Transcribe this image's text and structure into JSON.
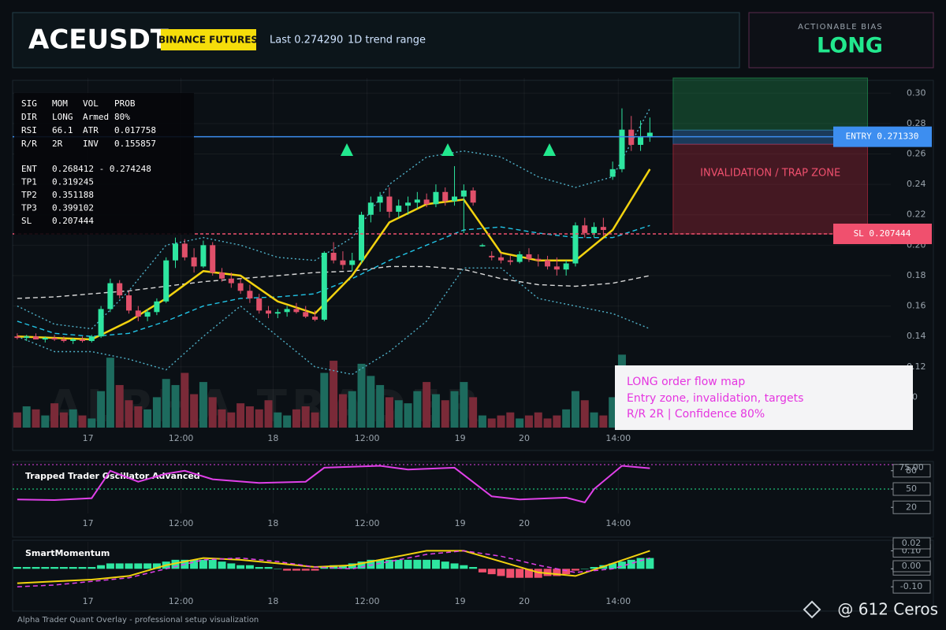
{
  "header": {
    "symbol": "ACEUSDT",
    "badge": "BINANCE FUTURES",
    "last": "Last 0.274290",
    "range": "1D trend range"
  },
  "bias": {
    "label": "ACTIONABLE BIAS",
    "value": "LONG"
  },
  "info": {
    "stats": [
      [
        "SIG",
        "MOM",
        "VOL",
        "PROB"
      ],
      [
        "DIR",
        "LONG",
        "Armed",
        "80%"
      ],
      [
        "RSI",
        "66.1",
        "ATR",
        "0.017758"
      ],
      [
        "R/R",
        "2R",
        "INV",
        "0.155857"
      ]
    ],
    "levels": [
      [
        "ENT",
        "0.268412 - 0.274248"
      ],
      [
        "TP1",
        "0.319245"
      ],
      [
        "TP2",
        "0.351188"
      ],
      [
        "TP3",
        "0.399102"
      ],
      [
        "SL",
        "0.207444"
      ]
    ]
  },
  "annotation": [
    "LONG order flow map",
    "Entry zone, invalidation, targets",
    "R/R 2R | Confidence 80%"
  ],
  "watermark": "ALPHA TRADER",
  "footer": "Alpha Trader Quant Overlay - professional setup visualization",
  "credit": "@ 612 Ceros",
  "chart_data": [
    {
      "type": "candlestick",
      "xlim": [
        -0.5,
        93.9
      ],
      "xticks": [
        {
          "value": 7.6,
          "label": "17"
        },
        {
          "value": 17.6,
          "label": "12:00"
        },
        {
          "value": 27.5,
          "label": "18"
        },
        {
          "value": 37.6,
          "label": "12:00"
        },
        {
          "value": 47.6,
          "label": "19"
        },
        {
          "value": 54.5,
          "label": "20"
        },
        {
          "value": 64.6,
          "label": "14:00"
        }
      ],
      "ylim": [
        0.08,
        0.31
      ],
      "yticks": [
        {
          "value": 0.3,
          "label": "0.30"
        },
        0.28,
        0.26,
        0.24,
        0.22,
        {
          "value": 0.2,
          "label": "0.20"
        },
        0.18,
        0.16,
        0.14,
        0.12
      ],
      "y2lim": [
        0,
        115
      ],
      "y2ticks": [
        10
      ],
      "grid": true,
      "up_color": "#2ee6a0",
      "down_color": "#e0506a",
      "candles": [
        [
          0.14,
          0.142,
          0.138,
          0.139
        ],
        [
          0.139,
          0.141,
          0.137,
          0.14
        ],
        [
          0.14,
          0.142,
          0.138,
          0.138
        ],
        [
          0.138,
          0.14,
          0.136,
          0.139
        ],
        [
          0.139,
          0.141,
          0.137,
          0.138
        ],
        [
          0.138,
          0.14,
          0.136,
          0.137
        ],
        [
          0.137,
          0.139,
          0.135,
          0.138
        ],
        [
          0.138,
          0.14,
          0.136,
          0.137
        ],
        [
          0.137,
          0.141,
          0.136,
          0.14
        ],
        [
          0.14,
          0.16,
          0.139,
          0.158
        ],
        [
          0.158,
          0.178,
          0.156,
          0.175
        ],
        [
          0.175,
          0.177,
          0.165,
          0.167
        ],
        [
          0.167,
          0.17,
          0.155,
          0.157
        ],
        [
          0.157,
          0.16,
          0.15,
          0.153
        ],
        [
          0.153,
          0.158,
          0.15,
          0.156
        ],
        [
          0.156,
          0.165,
          0.154,
          0.163
        ],
        [
          0.163,
          0.192,
          0.162,
          0.19
        ],
        [
          0.19,
          0.205,
          0.185,
          0.201
        ],
        [
          0.201,
          0.204,
          0.19,
          0.192
        ],
        [
          0.192,
          0.198,
          0.182,
          0.186
        ],
        [
          0.186,
          0.203,
          0.185,
          0.2
        ],
        [
          0.2,
          0.202,
          0.18,
          0.182
        ],
        [
          0.182,
          0.185,
          0.176,
          0.178
        ],
        [
          0.178,
          0.182,
          0.172,
          0.175
        ],
        [
          0.175,
          0.178,
          0.168,
          0.17
        ],
        [
          0.17,
          0.174,
          0.162,
          0.165
        ],
        [
          0.165,
          0.168,
          0.155,
          0.157
        ],
        [
          0.157,
          0.16,
          0.152,
          0.155
        ],
        [
          0.155,
          0.158,
          0.152,
          0.156
        ],
        [
          0.156,
          0.16,
          0.153,
          0.158
        ],
        [
          0.158,
          0.162,
          0.155,
          0.156
        ],
        [
          0.156,
          0.16,
          0.152,
          0.153
        ],
        [
          0.153,
          0.157,
          0.15,
          0.151
        ],
        [
          0.151,
          0.196,
          0.15,
          0.195
        ],
        [
          0.195,
          0.202,
          0.188,
          0.19
        ],
        [
          0.19,
          0.196,
          0.184,
          0.187
        ],
        [
          0.187,
          0.195,
          0.183,
          0.19
        ],
        [
          0.19,
          0.222,
          0.188,
          0.22
        ],
        [
          0.22,
          0.232,
          0.215,
          0.228
        ],
        [
          0.228,
          0.235,
          0.222,
          0.232
        ],
        [
          0.232,
          0.238,
          0.218,
          0.222
        ],
        [
          0.222,
          0.23,
          0.218,
          0.226
        ],
        [
          0.226,
          0.232,
          0.22,
          0.228
        ],
        [
          0.228,
          0.235,
          0.224,
          0.23
        ],
        [
          0.23,
          0.234,
          0.225,
          0.227
        ],
        [
          0.227,
          0.24,
          0.225,
          0.235
        ],
        [
          0.235,
          0.238,
          0.226,
          0.229
        ],
        [
          0.229,
          0.252,
          0.226,
          0.232
        ],
        [
          0.232,
          0.24,
          0.208,
          0.236
        ],
        [
          0.236,
          0.238,
          0.226,
          0.228
        ],
        [
          0.2,
          0.201,
          0.199,
          0.2
        ],
        [
          0.193,
          0.196,
          0.19,
          0.192
        ],
        [
          0.192,
          0.195,
          0.188,
          0.19
        ],
        [
          0.19,
          0.193,
          0.187,
          0.189
        ],
        [
          0.189,
          0.196,
          0.188,
          0.194
        ],
        [
          0.194,
          0.198,
          0.189,
          0.191
        ],
        [
          0.191,
          0.194,
          0.186,
          0.19
        ],
        [
          0.19,
          0.193,
          0.184,
          0.186
        ],
        [
          0.186,
          0.192,
          0.18,
          0.184
        ],
        [
          0.184,
          0.19,
          0.18,
          0.188
        ],
        [
          0.188,
          0.215,
          0.186,
          0.213
        ],
        [
          0.213,
          0.218,
          0.205,
          0.208
        ],
        [
          0.208,
          0.215,
          0.205,
          0.212
        ],
        [
          0.212,
          0.218,
          0.206,
          0.21
        ],
        [
          0.245,
          0.255,
          0.243,
          0.25
        ],
        [
          0.25,
          0.29,
          0.248,
          0.276
        ],
        [
          0.276,
          0.285,
          0.262,
          0.266
        ],
        [
          0.266,
          0.282,
          0.262,
          0.271
        ],
        [
          0.271,
          0.284,
          0.268,
          0.274
        ]
      ],
      "volume": [
        5,
        7,
        6,
        4,
        8,
        5,
        6,
        4,
        3,
        12,
        23,
        14,
        9,
        7,
        6,
        10,
        16,
        14,
        18,
        11,
        15,
        10,
        6,
        5,
        8,
        7,
        6,
        9,
        5,
        4,
        6,
        7,
        5,
        18,
        22,
        11,
        12,
        21,
        17,
        14,
        10,
        9,
        8,
        12,
        15,
        11,
        9,
        12,
        15,
        10,
        4,
        3,
        4,
        5,
        3,
        4,
        5,
        3,
        4,
        6,
        12,
        9,
        5,
        4,
        10,
        24,
        16,
        14,
        8
      ],
      "volume_up_color": "#1d6b5e",
      "volume_down_color": "#7a2a38",
      "line_x": [
        0,
        4,
        8,
        12,
        16,
        20,
        24,
        28,
        32,
        36,
        40,
        44,
        48,
        52,
        56,
        60,
        64,
        68
      ],
      "lines": [
        {
          "color": "#4fb0c8",
          "style": "dotted",
          "values": [
            0.16,
            0.148,
            0.145,
            0.17,
            0.2,
            0.205,
            0.2,
            0.192,
            0.19,
            0.205,
            0.24,
            0.258,
            0.262,
            0.258,
            0.245,
            0.238,
            0.245,
            0.29
          ]
        },
        {
          "color": "#4fb0c8",
          "style": "dotted",
          "values": [
            0.14,
            0.13,
            0.13,
            0.125,
            0.118,
            0.14,
            0.16,
            0.14,
            0.12,
            0.115,
            0.13,
            0.15,
            0.185,
            0.185,
            0.165,
            0.16,
            0.155,
            0.145
          ]
        },
        {
          "color": "#d8d8d8",
          "style": "dashed",
          "values": [
            0.165,
            0.166,
            0.168,
            0.17,
            0.173,
            0.176,
            0.178,
            0.18,
            0.182,
            0.183,
            0.186,
            0.186,
            0.184,
            0.178,
            0.174,
            0.173,
            0.175,
            0.18
          ]
        },
        {
          "color": "#22c4e6",
          "style": "dashed",
          "values": [
            0.15,
            0.142,
            0.14,
            0.142,
            0.15,
            0.16,
            0.165,
            0.166,
            0.168,
            0.178,
            0.19,
            0.2,
            0.21,
            0.212,
            0.208,
            0.205,
            0.205,
            0.213
          ]
        },
        {
          "color": "#f2d20f",
          "style": "solid",
          "values": [
            0.14,
            0.139,
            0.138,
            0.15,
            0.165,
            0.183,
            0.18,
            0.163,
            0.155,
            0.18,
            0.215,
            0.227,
            0.23,
            0.195,
            0.19,
            0.19,
            0.21,
            0.25
          ]
        }
      ],
      "zone_x": [
        70.5,
        91.4
      ],
      "target_zone": [
        0.2757,
        0.31
      ],
      "entry_zone": [
        0.2664,
        0.2757
      ],
      "trap_zone": [
        0.2074,
        0.2664
      ],
      "trap_label": "INVALIDATION / TRAP ZONE",
      "entry": {
        "label": "ENTRY 0.271330",
        "value": 0.27133,
        "color": "#3d8ef0"
      },
      "sl": {
        "label": "SL 0.207444",
        "value": 0.207444,
        "color": "#f0506e"
      }
    },
    {
      "type": "line",
      "title": "Trapped Trader Oscillator Advanced",
      "xlim": [
        -0.5,
        93.9
      ],
      "xticks": [
        {
          "value": 7.6,
          "label": "17"
        },
        {
          "value": 17.6,
          "label": "12:00"
        },
        {
          "value": 27.5,
          "label": "18"
        },
        {
          "value": 37.6,
          "label": "12:00"
        },
        {
          "value": 47.6,
          "label": "19"
        },
        {
          "value": 54.5,
          "label": "20"
        },
        {
          "value": 64.6,
          "label": "14:00"
        }
      ],
      "ylim": [
        10,
        90
      ],
      "yticks": [
        80,
        50,
        20
      ],
      "top_label": "75.00",
      "guide": 50,
      "color": "#e040e8",
      "x": [
        0,
        4,
        8,
        10,
        13,
        16,
        18,
        21,
        26,
        31,
        33,
        39,
        42,
        47,
        51,
        54,
        59,
        61,
        62,
        65,
        68
      ],
      "values": [
        33,
        32,
        35,
        80,
        62,
        75,
        80,
        66,
        60,
        62,
        85,
        88,
        82,
        85,
        38,
        33,
        36,
        28,
        50,
        88,
        84
      ]
    },
    {
      "type": "momentum",
      "title": "SmartMomentum",
      "xlim": [
        -0.5,
        93.9
      ],
      "xticks": [
        {
          "value": 7.6,
          "label": "17"
        },
        {
          "value": 17.6,
          "label": "12:00"
        },
        {
          "value": 27.5,
          "label": "18"
        },
        {
          "value": 37.6,
          "label": "12:00"
        },
        {
          "value": 47.6,
          "label": "19"
        },
        {
          "value": 54.5,
          "label": "20"
        },
        {
          "value": 64.6,
          "label": "14:00"
        }
      ],
      "ylim": [
        -0.13,
        0.15
      ],
      "yticks": [
        {
          "value": 0.1,
          "label": "0.10"
        },
        {
          "value": 0,
          "label": "0.00"
        },
        {
          "value": -0.1,
          "label": "-0.10"
        }
      ],
      "badges": [
        "0.02",
        "0.00"
      ],
      "up_color": "#2ee6a0",
      "down_color": "#f0506e",
      "histogram": [
        0.01,
        0.01,
        0.01,
        0.01,
        0.01,
        0.01,
        0.01,
        0.01,
        0.01,
        0.02,
        0.03,
        0.03,
        0.03,
        0.03,
        0.03,
        0.03,
        0.04,
        0.05,
        0.05,
        0.05,
        0.05,
        0.05,
        0.04,
        0.03,
        0.02,
        0.02,
        0.01,
        0.01,
        0.0,
        -0.01,
        -0.01,
        -0.01,
        -0.01,
        0.01,
        0.02,
        0.02,
        0.03,
        0.04,
        0.05,
        0.05,
        0.05,
        0.05,
        0.05,
        0.05,
        0.05,
        0.05,
        0.04,
        0.03,
        0.02,
        0.01,
        -0.02,
        -0.03,
        -0.04,
        -0.05,
        -0.05,
        -0.05,
        -0.05,
        -0.04,
        -0.04,
        -0.03,
        -0.01,
        0.0,
        0.01,
        0.02,
        0.03,
        0.04,
        0.05,
        0.06,
        0.06
      ],
      "x": [
        0,
        4,
        8,
        12,
        16,
        20,
        24,
        28,
        32,
        36,
        40,
        44,
        48,
        52,
        56,
        60,
        64,
        68
      ],
      "lines": [
        {
          "color": "#f2d20f",
          "style": "solid",
          "values": [
            -0.08,
            -0.07,
            -0.06,
            -0.04,
            0.02,
            0.06,
            0.05,
            0.03,
            0.01,
            0.02,
            0.06,
            0.1,
            0.1,
            0.04,
            -0.02,
            -0.04,
            0.03,
            0.1
          ]
        },
        {
          "color": "#e040e8",
          "style": "dashed",
          "values": [
            -0.1,
            -0.09,
            -0.07,
            -0.05,
            0.0,
            0.05,
            0.06,
            0.04,
            0.01,
            0.0,
            0.04,
            0.08,
            0.1,
            0.07,
            0.02,
            -0.02,
            0.0,
            0.06
          ]
        }
      ]
    }
  ]
}
